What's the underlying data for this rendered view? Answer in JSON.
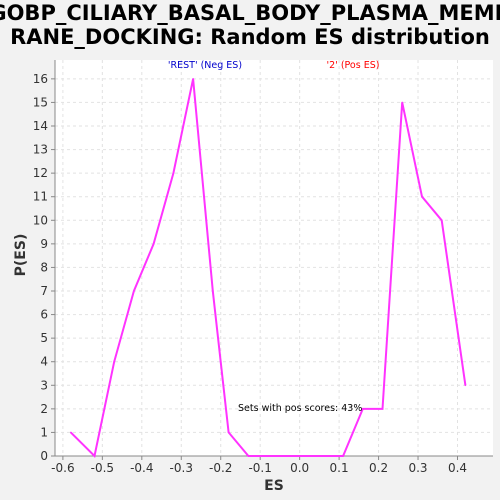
{
  "chart_data": {
    "type": "line",
    "title_lines": [
      "GOBP_CILIARY_BASAL_BODY_PLASMA_MEMB",
      "RANE_DOCKING: Random ES distribution"
    ],
    "xlabel": "ES",
    "ylabel": "P(ES)",
    "xlim": [
      -0.62,
      0.49
    ],
    "ylim": [
      0,
      16.8
    ],
    "x_ticks": [
      -0.6,
      -0.5,
      -0.4,
      -0.3,
      -0.2,
      -0.1,
      0.0,
      0.1,
      0.2,
      0.3,
      0.4
    ],
    "x_tick_labels": [
      "-0.6",
      "-0.5",
      "-0.4",
      "-0.3",
      "-0.2",
      "-0.1",
      "0.0",
      "0.1",
      "0.2",
      "0.3",
      "0.4"
    ],
    "y_ticks": [
      0,
      1,
      2,
      3,
      4,
      5,
      6,
      7,
      8,
      9,
      10,
      11,
      12,
      13,
      14,
      15,
      16
    ],
    "grid": true,
    "legend": [
      {
        "label": "'REST' (Neg ES)",
        "color": "#0000cc"
      },
      {
        "label": "'2' (Pos ES)",
        "color": "#ff0000"
      }
    ],
    "annotation": "Sets with pos scores: 43%",
    "series": [
      {
        "color": "#ff33ff",
        "x": [
          -0.58,
          -0.52,
          -0.47,
          -0.42,
          -0.37,
          -0.32,
          -0.27,
          -0.22,
          -0.18,
          -0.13,
          -0.08,
          0.11,
          0.16,
          0.21,
          0.26,
          0.31,
          0.36,
          0.42
        ],
        "y": [
          1,
          0,
          4,
          7,
          9,
          12,
          16,
          7,
          1,
          0,
          0,
          0,
          2,
          2,
          15,
          11,
          10,
          3
        ]
      }
    ]
  }
}
